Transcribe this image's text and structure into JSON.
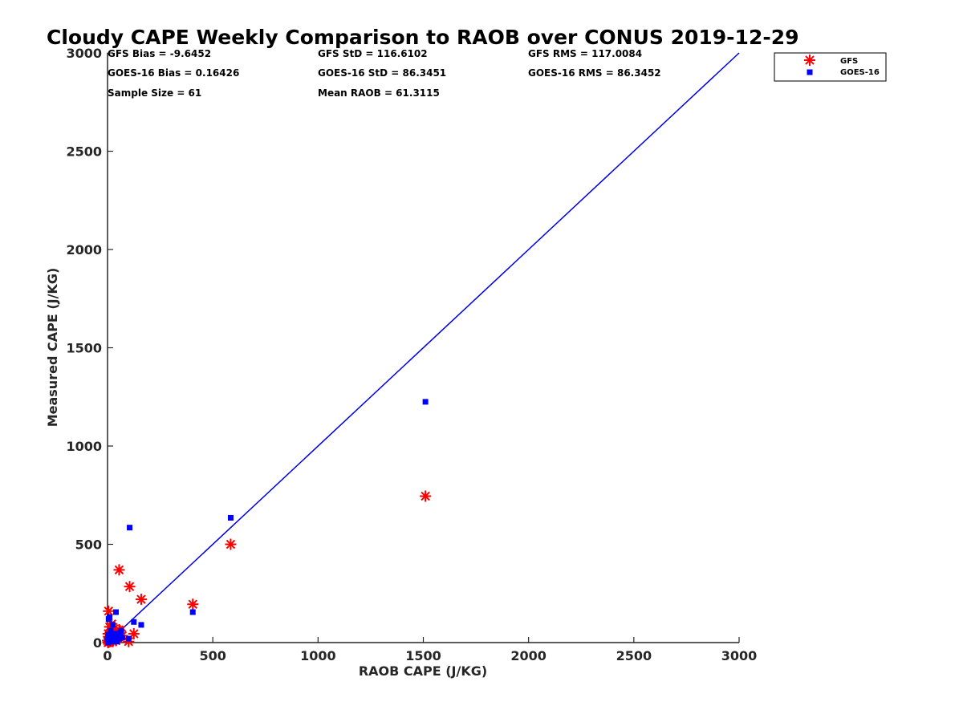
{
  "chart_data": {
    "type": "scatter",
    "title": "Cloudy CAPE Weekly Comparison to RAOB over CONUS 2019-12-29",
    "xlabel": "RAOB CAPE (J/KG)",
    "ylabel": "Measured CAPE (J/KG)",
    "xlim": [
      0,
      3000
    ],
    "ylim": [
      0,
      3000
    ],
    "xticks": [
      0,
      500,
      1000,
      1500,
      2000,
      2500,
      3000
    ],
    "yticks": [
      0,
      500,
      1000,
      1500,
      2000,
      2500,
      3000
    ],
    "xtick_labels": [
      "0",
      "500",
      "1000",
      "1500",
      "2000",
      "2500",
      "3000"
    ],
    "ytick_labels": [
      "0",
      "500",
      "1000",
      "1500",
      "2000",
      "2500",
      "3000"
    ],
    "grid": false,
    "legend_position": "top-right",
    "reference_line": {
      "x": [
        0,
        3000
      ],
      "y": [
        0,
        3000
      ],
      "color": "#0000e6"
    },
    "stats": {
      "gfs_bias": "GFS Bias = -9.6452",
      "gfs_std": "GFS StD = 116.6102",
      "gfs_rms": "GFS RMS = 117.0084",
      "goes_bias": "GOES-16 Bias = 0.16426",
      "goes_std": "GOES-16 StD = 86.3451",
      "goes_rms": "GOES-16 RMS = 86.3452",
      "sample_size": "Sample Size = 61",
      "mean_raob": "Mean RAOB = 61.3115"
    },
    "series": [
      {
        "name": "GFS",
        "marker": "asterisk",
        "color": "#ff0000",
        "x": [
          1510,
          585,
          405,
          55,
          105,
          160,
          125,
          100,
          55,
          5,
          10,
          20,
          30,
          45,
          50,
          0,
          5,
          10,
          15,
          25,
          35,
          40,
          60,
          70,
          2,
          8,
          12,
          18,
          3,
          6
        ],
        "y": [
          745,
          500,
          195,
          370,
          285,
          220,
          45,
          5,
          65,
          160,
          80,
          95,
          70,
          40,
          20,
          10,
          30,
          15,
          50,
          5,
          25,
          10,
          60,
          35,
          0,
          20,
          5,
          30,
          45,
          2
        ]
      },
      {
        "name": "GOES-16",
        "marker": "square",
        "color": "#0000ff",
        "x": [
          1510,
          585,
          405,
          105,
          40,
          160,
          125,
          100,
          5,
          10,
          15,
          25,
          30,
          35,
          45,
          50,
          55,
          60,
          0,
          2,
          8,
          12,
          18,
          20,
          28,
          38,
          42,
          65,
          70,
          3
        ],
        "y": [
          1225,
          635,
          155,
          585,
          155,
          90,
          105,
          20,
          120,
          130,
          60,
          90,
          40,
          10,
          5,
          30,
          20,
          50,
          15,
          40,
          25,
          10,
          35,
          5,
          20,
          15,
          45,
          60,
          25,
          0
        ]
      }
    ]
  }
}
